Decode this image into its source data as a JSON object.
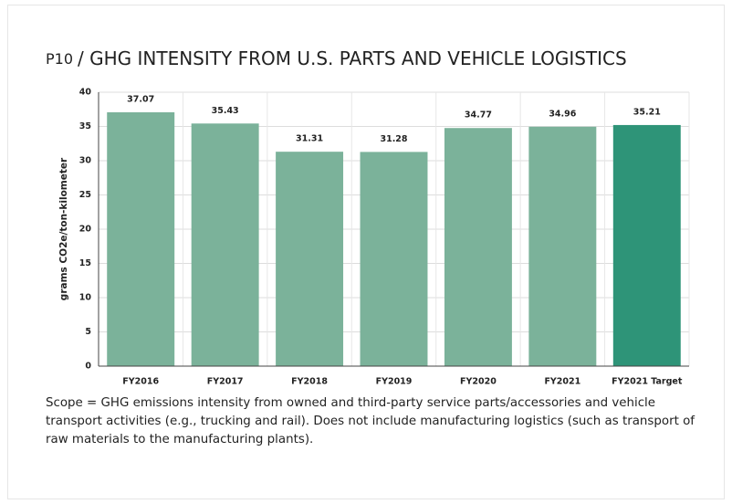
{
  "chart_data": {
    "type": "bar",
    "figure_label": "P10",
    "title": "/ GHG INTENSITY FROM U.S. PARTS AND VEHICLE LOGISTICS",
    "y_label": "grams CO2e/ton-kilometer",
    "categories": [
      "FY2016",
      "FY2017",
      "FY2018",
      "FY2019",
      "FY2020",
      "FY2021",
      "FY2021 Target"
    ],
    "values": [
      37.07,
      35.43,
      31.31,
      31.28,
      34.77,
      34.96,
      35.21
    ],
    "colors": [
      "#7bb29a",
      "#7bb29a",
      "#7bb29a",
      "#7bb29a",
      "#7bb29a",
      "#7bb29a",
      "#2e9478"
    ],
    "ylim": [
      0,
      40
    ],
    "yticks": [
      0,
      5,
      10,
      15,
      20,
      25,
      30,
      35,
      40
    ],
    "grid": true,
    "caption": "Scope = GHG emissions intensity from owned and third-party service parts/accessories and vehicle transport activities (e.g., trucking and rail). Does not include manufacturing logistics (such as transport of raw materials to the manufacturing plants)."
  }
}
